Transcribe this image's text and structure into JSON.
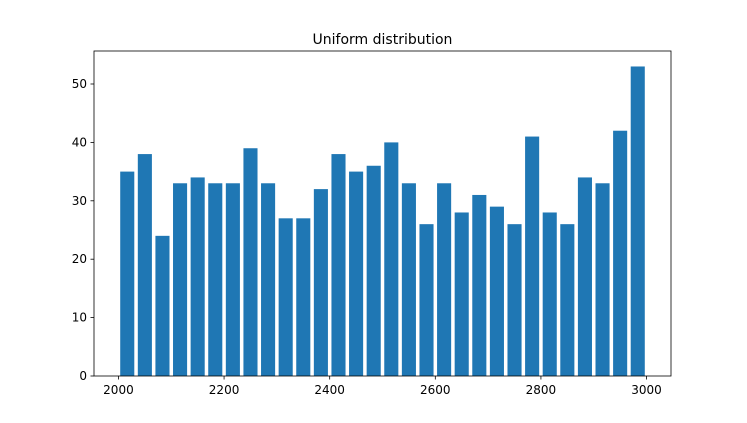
{
  "chart_data": {
    "type": "histogram",
    "title": "Uniform distribution",
    "bins": [
      2000,
      2033.33,
      2066.67,
      2100,
      2133.33,
      2166.67,
      2200,
      2233.33,
      2266.67,
      2300,
      2333.33,
      2366.67,
      2400,
      2433.33,
      2466.67,
      2500,
      2533.33,
      2566.67,
      2600,
      2633.33,
      2666.67,
      2700,
      2733.33,
      2766.67,
      2800,
      2833.33,
      2866.67,
      2900,
      2933.33,
      2966.67,
      3000
    ],
    "values": [
      35,
      38,
      24,
      33,
      34,
      33,
      33,
      39,
      33,
      27,
      27,
      32,
      38,
      35,
      36,
      40,
      33,
      26,
      33,
      28,
      31,
      29,
      26,
      41,
      28,
      26,
      34,
      33,
      42,
      53
    ],
    "color": "#1f77b4",
    "xlim": [
      1953.7,
      3046.3
    ],
    "xticks": [
      2000,
      2200,
      2400,
      2600,
      2800,
      3000
    ],
    "ylim": [
      0,
      55.65
    ],
    "yticks": [
      0,
      10,
      20,
      30,
      40,
      50
    ]
  }
}
